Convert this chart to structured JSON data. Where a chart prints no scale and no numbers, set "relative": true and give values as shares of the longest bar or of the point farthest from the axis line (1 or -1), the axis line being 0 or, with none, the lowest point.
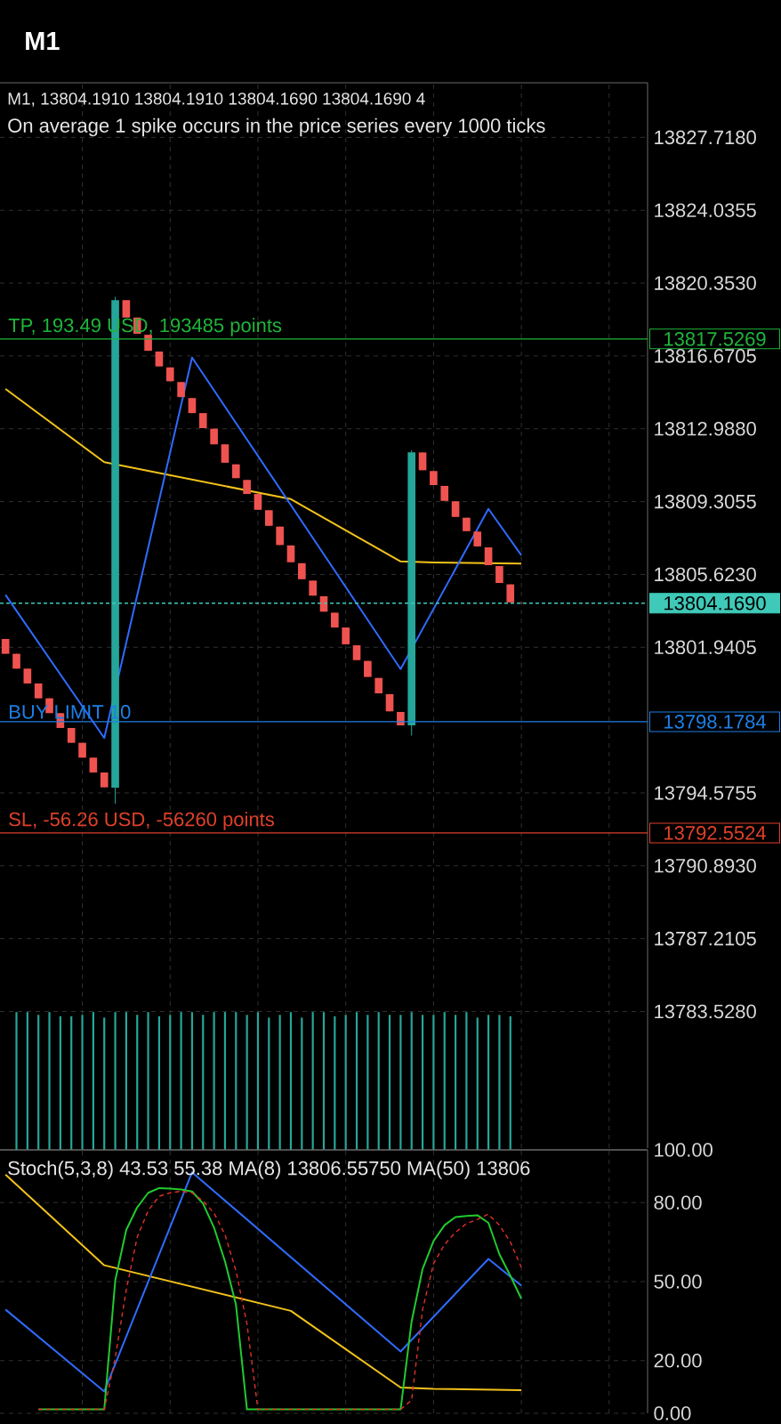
{
  "chart_data": [
    {
      "type": "candlestick",
      "title": "M1",
      "subtitle": "M1, 13804.1910 13804.1910 13804.1690 13804.1690 4",
      "categories": [
        null,
        null,
        null,
        null,
        null,
        null,
        null,
        null,
        null,
        null,
        null,
        null,
        null,
        null,
        null,
        null,
        null,
        null,
        null,
        null,
        null,
        null,
        null,
        null,
        null,
        null,
        null,
        null,
        null,
        null,
        null,
        null,
        null,
        null,
        null,
        null,
        null,
        null,
        null,
        null,
        null,
        null,
        null,
        null,
        null,
        null,
        null,
        null,
        null,
        null,
        null,
        null,
        null,
        null,
        null,
        null,
        null,
        null,
        null
      ],
      "ohlc": [
        [
          13802.36,
          13802.36,
          13801.61,
          13801.61
        ],
        [
          13801.61,
          13801.61,
          13800.86,
          13800.86
        ],
        [
          13800.86,
          13800.86,
          13800.11,
          13800.11
        ],
        [
          13800.11,
          13800.11,
          13799.36,
          13799.36
        ],
        [
          13799.36,
          13799.36,
          13798.61,
          13798.61
        ],
        [
          13798.61,
          13798.61,
          13797.86,
          13797.86
        ],
        [
          13797.86,
          13797.86,
          13797.11,
          13797.11
        ],
        [
          13797.11,
          13797.11,
          13796.36,
          13796.36
        ],
        [
          13796.36,
          13796.36,
          13795.61,
          13795.61
        ],
        [
          13795.61,
          13795.61,
          13794.86,
          13794.86
        ],
        [
          13794.84,
          13819.66,
          13794.03,
          13819.49
        ],
        [
          13819.49,
          13819.49,
          13818.61,
          13818.61
        ],
        [
          13818.61,
          13818.61,
          13817.79,
          13817.79
        ],
        [
          13817.74,
          13817.74,
          13816.93,
          13816.93
        ],
        [
          13816.89,
          13816.89,
          13816.14,
          13816.14
        ],
        [
          13816.09,
          13816.09,
          13815.39,
          13815.39
        ],
        [
          13815.35,
          13815.35,
          13814.59,
          13814.59
        ],
        [
          13814.54,
          13814.54,
          13813.78,
          13813.78
        ],
        [
          13813.78,
          13813.78,
          13813.02,
          13813.02
        ],
        [
          13812.99,
          13812.99,
          13812.2,
          13812.2
        ],
        [
          13812.2,
          13812.2,
          13811.27,
          13811.27
        ],
        [
          13811.19,
          13811.19,
          13810.49,
          13810.49
        ],
        [
          13810.4,
          13810.4,
          13809.69,
          13809.69
        ],
        [
          13809.69,
          13809.69,
          13808.89,
          13808.89
        ],
        [
          13808.87,
          13808.87,
          13808.08,
          13808.08
        ],
        [
          13808.04,
          13808.04,
          13807.11,
          13807.11
        ],
        [
          13807.09,
          13807.09,
          13806.24,
          13806.24
        ],
        [
          13806.19,
          13806.19,
          13805.38,
          13805.38
        ],
        [
          13805.31,
          13805.31,
          13804.55,
          13804.55
        ],
        [
          13804.52,
          13804.52,
          13803.74,
          13803.74
        ],
        [
          13803.69,
          13803.69,
          13802.94,
          13802.94
        ],
        [
          13802.94,
          13802.94,
          13802.09,
          13802.09
        ],
        [
          13802.04,
          13802.04,
          13801.29,
          13801.29
        ],
        [
          13801.25,
          13801.25,
          13800.44,
          13800.44
        ],
        [
          13800.39,
          13800.39,
          13799.61,
          13799.61
        ],
        [
          13799.57,
          13799.57,
          13798.7,
          13798.7
        ],
        [
          13798.67,
          13798.67,
          13797.99,
          13797.99
        ],
        [
          13797.99,
          13811.9,
          13797.47,
          13811.79
        ],
        [
          13811.79,
          13811.79,
          13810.89,
          13810.89
        ],
        [
          13810.85,
          13810.85,
          13810.14,
          13810.14
        ],
        [
          13810.1,
          13810.1,
          13809.34,
          13809.34
        ],
        [
          13809.32,
          13809.32,
          13808.53,
          13808.53
        ],
        [
          13808.49,
          13808.49,
          13807.81,
          13807.81
        ],
        [
          13807.79,
          13807.79,
          13807.04,
          13807.04
        ],
        [
          13806.99,
          13806.99,
          13806.09,
          13806.09
        ],
        [
          13806.05,
          13806.05,
          13805.19,
          13805.19
        ],
        [
          13805.12,
          13805.12,
          13804.21,
          13804.21
        ],
        [
          13804.191,
          13804.191,
          13804.169,
          13804.169
        ],
        null,
        null,
        null,
        null,
        null,
        null,
        null,
        null,
        null,
        null,
        null
      ],
      "series": [
        {
          "type": "line",
          "color": "#f2c21b",
          "values": [
            13815.0,
            null,
            null,
            null,
            null,
            null,
            null,
            null,
            null,
            13811.3,
            null,
            null,
            null,
            null,
            null,
            null,
            null,
            null,
            null,
            null,
            null,
            null,
            null,
            null,
            null,
            null,
            13809.43,
            null,
            null,
            null,
            null,
            null,
            null,
            null,
            null,
            null,
            13806.28,
            null,
            null,
            13806.23,
            null,
            null,
            null,
            null,
            null,
            null,
            null,
            13806.17,
            null,
            null,
            null,
            null,
            null,
            null,
            null,
            null,
            null,
            null,
            null
          ]
        },
        {
          "type": "line",
          "color": "#2f6bff",
          "values": [
            13804.59,
            null,
            null,
            null,
            null,
            null,
            null,
            null,
            null,
            13797.35,
            null,
            null,
            null,
            null,
            null,
            null,
            null,
            13816.59,
            null,
            null,
            null,
            null,
            null,
            null,
            null,
            null,
            null,
            null,
            null,
            null,
            null,
            null,
            null,
            null,
            null,
            null,
            13800.84,
            null,
            null,
            null,
            null,
            null,
            null,
            null,
            13808.94,
            null,
            null,
            13806.59,
            null,
            null,
            null,
            null,
            null,
            null,
            null,
            null,
            null,
            null,
            null
          ]
        }
      ],
      "ylim": [
        13776.62,
        13830.48
      ],
      "yticks": [
        {
          "value": 13827.718,
          "label": "13827.7180"
        },
        {
          "value": 13824.0355,
          "label": "13824.0355"
        },
        {
          "value": 13820.353,
          "label": "13820.3530"
        },
        {
          "value": 13816.6705,
          "label": "13816.6705"
        },
        {
          "value": 13812.988,
          "label": "13812.9880"
        },
        {
          "value": 13809.3055,
          "label": "13809.3055"
        },
        {
          "value": 13805.623,
          "label": "13805.6230"
        },
        {
          "value": 13801.9405,
          "label": "13801.9405"
        },
        {
          "value": 13794.5755,
          "label": "13794.5755"
        },
        {
          "value": 13790.893,
          "label": "13790.8930"
        },
        {
          "value": 13787.2105,
          "label": "13787.2105"
        },
        {
          "value": 13783.528,
          "label": "13783.5280"
        }
      ],
      "tick_labels": "y",
      "grid": true,
      "ref_lines": [
        {
          "axis": "y",
          "value": 13817.5269,
          "label": "TP, 193.49 USD, 193485 points",
          "color": "#1fb53a"
        },
        {
          "axis": "y",
          "value": 13804.169,
          "color": "#3fc9b8",
          "line_style": "dashed"
        },
        {
          "axis": "y",
          "value": 13798.1784,
          "label": "BUY LIMIT 10",
          "color": "#1e7fe6"
        },
        {
          "axis": "y",
          "value": 13792.5524,
          "label": "SL, -56.26 USD, -56260 points",
          "color": "#e0402a"
        }
      ],
      "annotations": [
        "On average 1 spike occurs in the price series every 1000 ticks",
        "13817.5269",
        "13804.1690",
        "13798.1784",
        "13792.5524"
      ]
    },
    {
      "type": "bar",
      "relative": true,
      "color": "#26a69a",
      "categories": [
        null,
        null,
        null,
        null,
        null,
        null,
        null,
        null,
        null,
        null,
        null,
        null,
        null,
        null,
        null,
        null,
        null,
        null,
        null,
        null,
        null,
        null,
        null,
        null,
        null,
        null,
        null,
        null,
        null,
        null,
        null,
        null,
        null,
        null,
        null,
        null,
        null,
        null,
        null,
        null,
        null,
        null,
        null,
        null,
        null,
        null
      ],
      "values": [
        1,
        1,
        0.98,
        1,
        0.97,
        0.97,
        0.98,
        1,
        0.96,
        1,
        1,
        0.98,
        1,
        0.97,
        0.98,
        1,
        1,
        0.98,
        1,
        1,
        1,
        0.98,
        1,
        0.96,
        0.98,
        1,
        0.96,
        1,
        1,
        0.97,
        0.98,
        1,
        0.98,
        1,
        0.98,
        0.98,
        1,
        0.98,
        0.98,
        1,
        0.98,
        1,
        0.96,
        0.98,
        0.98,
        0.97
      ]
    },
    {
      "type": "line",
      "title": "Stoch(5,3,8) 43.53 55.38 MA(8) 13806.55750 MA(50) 13806",
      "categories": [
        null,
        null,
        null,
        null,
        null,
        null,
        null,
        null,
        null,
        null,
        null,
        null,
        null,
        null,
        null,
        null,
        null,
        null,
        null,
        null,
        null,
        null,
        null,
        null,
        null,
        null,
        null,
        null,
        null,
        null,
        null,
        null,
        null,
        null,
        null,
        null,
        null,
        null,
        null,
        null,
        null,
        null,
        null,
        null,
        null,
        null,
        null,
        null,
        null,
        null,
        null,
        null,
        null,
        null,
        null,
        null,
        null,
        null,
        null
      ],
      "series": [
        {
          "color": "#f2c21b",
          "values": [
            90.6,
            null,
            null,
            null,
            null,
            null,
            null,
            null,
            null,
            56.2,
            null,
            null,
            null,
            null,
            null,
            null,
            null,
            null,
            null,
            null,
            null,
            null,
            null,
            null,
            null,
            null,
            38.9,
            null,
            null,
            null,
            null,
            null,
            null,
            null,
            null,
            null,
            9.8,
            null,
            null,
            9.3,
            null,
            null,
            null,
            null,
            null,
            null,
            null,
            8.8,
            null,
            null,
            null,
            null,
            null,
            null,
            null,
            null,
            null,
            null,
            null
          ]
        },
        {
          "color": "#2f6bff",
          "values": [
            39.4,
            null,
            null,
            null,
            null,
            null,
            null,
            null,
            null,
            8.3,
            null,
            null,
            null,
            null,
            null,
            null,
            null,
            91.5,
            null,
            null,
            null,
            null,
            null,
            null,
            null,
            null,
            null,
            null,
            null,
            null,
            null,
            null,
            null,
            null,
            null,
            null,
            23.5,
            null,
            null,
            null,
            null,
            null,
            null,
            null,
            58.6,
            null,
            null,
            48.5,
            null,
            null,
            null,
            null,
            null,
            null,
            null,
            null,
            null,
            null,
            null
          ]
        },
        {
          "color": "#22c92f",
          "values": [
            null,
            null,
            null,
            1.5,
            1.5,
            1.5,
            1.5,
            1.5,
            1.5,
            1.5,
            50.4,
            69.6,
            78.2,
            83.7,
            85.5,
            85.3,
            85.0,
            84.2,
            79.6,
            70.5,
            57.7,
            41.2,
            1.5,
            1.5,
            1.5,
            1.5,
            1.5,
            1.5,
            1.5,
            1.5,
            1.5,
            1.5,
            1.5,
            1.5,
            1.5,
            1.5,
            1.5,
            34.8,
            54.8,
            65.4,
            71.4,
            74.5,
            74.9,
            75.2,
            72.3,
            60.4,
            52.2,
            43.5,
            null,
            null,
            null,
            null,
            null,
            null,
            null,
            null,
            null,
            null,
            null
          ]
        },
        {
          "color": "#e0302a",
          "line_style": "dashed",
          "values": [
            null,
            null,
            null,
            1.5,
            1.5,
            1.5,
            1.5,
            1.5,
            1.5,
            1.5,
            21.1,
            46.8,
            66.9,
            76.9,
            82.4,
            83.7,
            84.3,
            83.7,
            80.6,
            76.0,
            67.8,
            54.1,
            34.0,
            1.5,
            1.5,
            1.5,
            1.5,
            1.5,
            1.5,
            1.5,
            1.5,
            1.5,
            1.5,
            1.5,
            1.5,
            1.5,
            1.5,
            5,
            39.4,
            56.8,
            64.1,
            68.7,
            72.0,
            73.6,
            75.6,
            71.4,
            65.0,
            55.4,
            null,
            null,
            null,
            null,
            null,
            null,
            null,
            null,
            null,
            null,
            null
          ]
        }
      ],
      "ylim": [
        0,
        100
      ],
      "yticks": [
        {
          "value": 0,
          "label": "0.00"
        },
        {
          "value": 20,
          "label": "20.00"
        },
        {
          "value": 50,
          "label": "50.00"
        },
        {
          "value": 80,
          "label": "80.00"
        },
        {
          "value": 100,
          "label": "100.00"
        }
      ],
      "tick_labels": "y",
      "grid": true
    }
  ]
}
